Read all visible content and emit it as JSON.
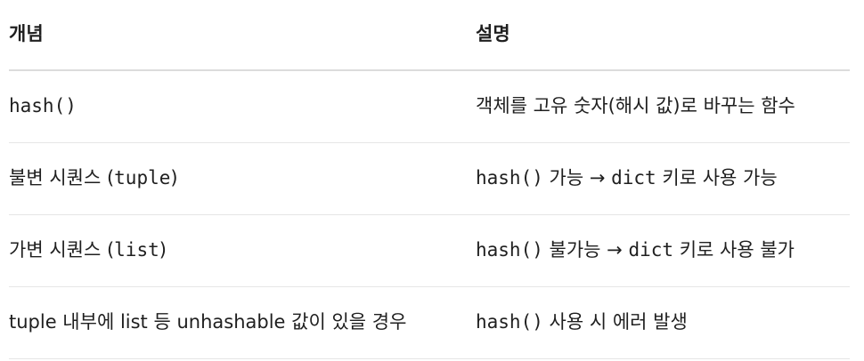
{
  "table": {
    "headers": [
      "개념",
      "설명"
    ],
    "rows": [
      {
        "concept": [
          {
            "t": "hash()",
            "code": true
          }
        ],
        "desc": [
          {
            "t": "객체를 고유 숫자(해시 값)로 바꾸는 함수",
            "code": false
          }
        ]
      },
      {
        "concept": [
          {
            "t": "불변 시퀀스 (",
            "code": false
          },
          {
            "t": "tuple",
            "code": true
          },
          {
            "t": ")",
            "code": false
          }
        ],
        "desc": [
          {
            "t": "hash()",
            "code": true
          },
          {
            "t": " 가능 → ",
            "code": false
          },
          {
            "t": "dict",
            "code": true
          },
          {
            "t": " 키로 사용 가능",
            "code": false
          }
        ]
      },
      {
        "concept": [
          {
            "t": "가변 시퀀스 (",
            "code": false
          },
          {
            "t": "list",
            "code": true
          },
          {
            "t": ")",
            "code": false
          }
        ],
        "desc": [
          {
            "t": "hash()",
            "code": true
          },
          {
            "t": " 불가능 → ",
            "code": false
          },
          {
            "t": "dict",
            "code": true
          },
          {
            "t": " 키로 사용 불가",
            "code": false
          }
        ]
      },
      {
        "concept": [
          {
            "t": "tuple 내부에 list 등 unhashable 값이 있을 경우",
            "code": false
          }
        ],
        "desc": [
          {
            "t": "hash()",
            "code": true
          },
          {
            "t": " 사용 시 에러 발생",
            "code": false
          }
        ]
      }
    ]
  }
}
